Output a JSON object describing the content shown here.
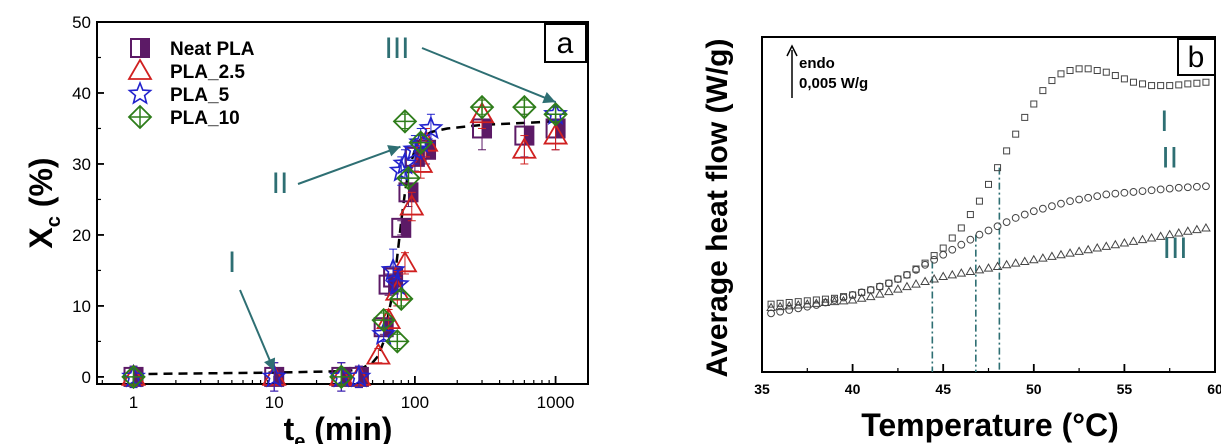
{
  "chart_data": [
    {
      "type": "scatter",
      "panel_label": "a",
      "xlabel": "t",
      "xlabel_sub": "e",
      "xlabel_unit": "(min)",
      "ylabel": "X",
      "ylabel_sub": "c",
      "ylabel_unit": "(%)",
      "xscale": "log",
      "xlim": [
        0.55,
        1700
      ],
      "ylim": [
        -1,
        50
      ],
      "xticks": [
        1,
        10,
        100,
        1000
      ],
      "xtick_labels": [
        "1",
        "10",
        "100",
        "1000"
      ],
      "yticks": [
        0,
        10,
        20,
        30,
        40,
        50
      ],
      "ytick_labels": [
        "0",
        "10",
        "20",
        "30",
        "40",
        "50"
      ],
      "legend_position": "top-left",
      "series": [
        {
          "name": "Neat PLA",
          "marker": "half-filled-square",
          "color": "#5c1a66",
          "x": [
            1,
            10,
            30,
            40,
            60,
            65,
            70,
            80,
            90,
            100,
            120,
            300,
            600,
            1000
          ],
          "y": [
            0,
            0,
            0,
            0,
            7,
            13,
            14,
            21,
            26,
            31,
            32,
            35,
            34,
            35
          ],
          "err": [
            1.5,
            2,
            2,
            1.5,
            1,
            1.5,
            1.5,
            1,
            2,
            2,
            2,
            3,
            3,
            3
          ]
        },
        {
          "name": "PLA_2.5",
          "marker": "open-triangle",
          "color": "#d02020",
          "x": [
            1,
            10,
            30,
            40,
            55,
            65,
            75,
            85,
            95,
            110,
            120,
            300,
            600,
            1000
          ],
          "y": [
            0,
            0,
            0,
            0,
            3,
            8,
            12,
            16,
            24,
            30,
            33,
            37,
            32,
            34
          ],
          "err": [
            1.5,
            2,
            2,
            1.5,
            1,
            1.5,
            2,
            1.5,
            2,
            2,
            2,
            2,
            2,
            2
          ]
        },
        {
          "name": "PLA_5",
          "marker": "open-star",
          "color": "#2222cc",
          "x": [
            1,
            10,
            30,
            40,
            60,
            70,
            75,
            80,
            85,
            100,
            110,
            130,
            1000
          ],
          "y": [
            0,
            0,
            0,
            0,
            6,
            15,
            13,
            29,
            30,
            32,
            33,
            35,
            37
          ],
          "err": [
            1.5,
            2,
            2,
            1.5,
            1,
            3,
            2,
            2,
            2,
            2,
            2,
            2,
            1
          ]
        },
        {
          "name": "PLA_10",
          "marker": "crossed-diamond",
          "color": "#2e7d1a",
          "x": [
            1,
            30,
            60,
            75,
            80,
            85,
            90,
            110,
            300,
            600,
            1000
          ],
          "y": [
            0,
            0,
            8,
            5,
            11,
            36,
            28,
            33,
            38,
            38,
            37
          ],
          "err": [
            1,
            1,
            1,
            1,
            1,
            1,
            1,
            1,
            1,
            1,
            1
          ]
        }
      ],
      "fit_curve": {
        "x": [
          1,
          10,
          30,
          40,
          50,
          55,
          60,
          65,
          70,
          75,
          80,
          85,
          90,
          100,
          110,
          130,
          170,
          300,
          1000
        ],
        "y": [
          0.4,
          0.6,
          0.8,
          1,
          2,
          3,
          5,
          9,
          12,
          17,
          22,
          26,
          29,
          32,
          33.5,
          34.5,
          35,
          35.5,
          36
        ]
      },
      "annotations": [
        {
          "text": "I",
          "x": 10,
          "y": 0
        },
        {
          "text": "II",
          "x": 90,
          "y": 33
        },
        {
          "text": "III",
          "x": 1000,
          "y": 39
        }
      ]
    },
    {
      "type": "scatter",
      "panel_label": "b",
      "xlabel": "Temperature (°C)",
      "ylabel": "Average heat flow (W/g)",
      "xlim": [
        35,
        60
      ],
      "xticks": [
        35,
        40,
        45,
        50,
        55,
        60
      ],
      "xtick_labels": [
        "35",
        "40",
        "45",
        "50",
        "55",
        "60"
      ],
      "ylim": [
        0,
        1
      ],
      "ytick_labels": [],
      "scale_annotation": {
        "line1": "endo",
        "line2": "0,005 W/g"
      },
      "series": [
        {
          "name": "I",
          "marker": "open-square",
          "color": "#444444",
          "x": [
            35,
            36,
            37,
            38,
            39,
            40,
            41,
            42,
            43,
            44,
            45,
            45.5,
            46,
            46.5,
            47,
            47.5,
            48,
            48.5,
            49,
            49.5,
            50,
            50.5,
            51,
            51.5,
            52,
            52.5,
            53,
            53.5,
            54,
            54.5,
            55,
            55.5,
            56,
            56.5,
            57,
            57.5,
            58,
            58.5,
            59,
            59.5,
            60
          ],
          "y": [
            0.2,
            0.205,
            0.21,
            0.215,
            0.22,
            0.23,
            0.245,
            0.265,
            0.29,
            0.325,
            0.37,
            0.4,
            0.43,
            0.47,
            0.51,
            0.56,
            0.61,
            0.66,
            0.71,
            0.76,
            0.8,
            0.84,
            0.87,
            0.89,
            0.9,
            0.905,
            0.905,
            0.9,
            0.895,
            0.885,
            0.875,
            0.865,
            0.86,
            0.855,
            0.855,
            0.855,
            0.857,
            0.86,
            0.862,
            0.865,
            0.868
          ]
        },
        {
          "name": "II",
          "marker": "open-circle",
          "color": "#444444",
          "x": [
            35,
            36,
            37,
            38,
            39,
            40,
            41,
            42,
            43,
            44,
            45,
            46,
            47,
            48,
            49,
            50,
            51,
            52,
            53,
            54,
            55,
            56,
            57,
            58,
            59,
            60
          ],
          "y": [
            0.17,
            0.18,
            0.19,
            0.2,
            0.215,
            0.23,
            0.245,
            0.265,
            0.29,
            0.32,
            0.35,
            0.38,
            0.41,
            0.435,
            0.46,
            0.48,
            0.495,
            0.51,
            0.52,
            0.53,
            0.535,
            0.54,
            0.545,
            0.55,
            0.553,
            0.556
          ]
        },
        {
          "name": "III",
          "marker": "open-triangle",
          "color": "#444444",
          "x": [
            35,
            36,
            37,
            38,
            39,
            40,
            41,
            42,
            43,
            44,
            45,
            46,
            47,
            48,
            49,
            50,
            51,
            52,
            53,
            54,
            55,
            56,
            57,
            58,
            59,
            60
          ],
          "y": [
            0.19,
            0.195,
            0.2,
            0.205,
            0.21,
            0.215,
            0.225,
            0.24,
            0.255,
            0.27,
            0.285,
            0.295,
            0.305,
            0.315,
            0.325,
            0.335,
            0.345,
            0.355,
            0.365,
            0.375,
            0.385,
            0.395,
            0.405,
            0.415,
            0.425,
            0.435
          ]
        }
      ],
      "onset_lines": [
        {
          "x": 44.4,
          "y_top": 0.33
        },
        {
          "x": 46.8,
          "y_top": 0.41
        },
        {
          "x": 48.1,
          "y_top": 0.61
        }
      ],
      "curve_labels": [
        {
          "text": "I",
          "x": 57.2,
          "y": 0.72
        },
        {
          "text": "II",
          "x": 57.5,
          "y": 0.61
        },
        {
          "text": "III",
          "x": 57.8,
          "y": 0.34
        }
      ]
    }
  ]
}
